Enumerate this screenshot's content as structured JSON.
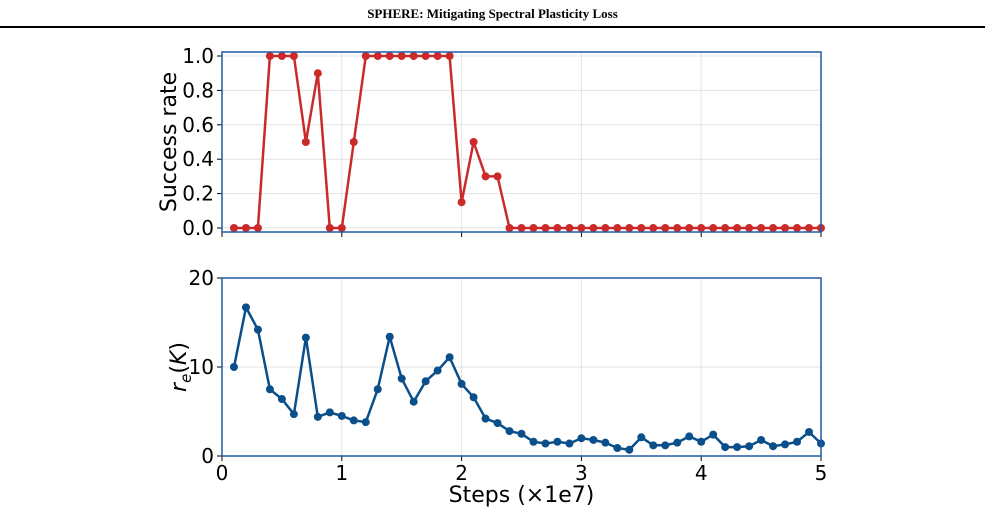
{
  "header": {
    "running_title": "SPHERE: Mitigating Spectral Plasticity Loss"
  },
  "colors": {
    "success_series": "#cb2a2a",
    "rank_series": "#0b4f8a",
    "axes_frame": "#1f5aa6",
    "grid": "#e3e3e3",
    "text": "#000000"
  },
  "chart_data": [
    {
      "type": "line",
      "title": "",
      "xlabel": "",
      "ylabel": "Success rate",
      "xlim": [
        0,
        5
      ],
      "ylim": [
        0,
        1.0
      ],
      "xticks": [
        0,
        1,
        2,
        3,
        4,
        5
      ],
      "xtick_labels_shown": false,
      "yticks": [
        0.0,
        0.2,
        0.4,
        0.6,
        0.8,
        1.0
      ],
      "ytick_labels": [
        "0.0",
        "0.2",
        "0.4",
        "0.6",
        "0.8",
        "1.0"
      ],
      "grid": true,
      "series": [
        {
          "color": "#cb2a2a",
          "x": [
            0.1,
            0.2,
            0.3,
            0.4,
            0.5,
            0.6,
            0.7,
            0.8,
            0.9,
            1.0,
            1.1,
            1.2,
            1.3,
            1.4,
            1.5,
            1.6,
            1.7,
            1.8,
            1.9,
            2.0,
            2.1,
            2.2,
            2.3,
            2.4,
            2.5,
            2.6,
            2.7,
            2.8,
            2.9,
            3.0,
            3.1,
            3.2,
            3.3,
            3.4,
            3.5,
            3.6,
            3.7,
            3.8,
            3.9,
            4.0,
            4.1,
            4.2,
            4.3,
            4.4,
            4.5,
            4.6,
            4.7,
            4.8,
            4.9,
            5.0
          ],
          "y": [
            0,
            0,
            0,
            1,
            1,
            1,
            0.5,
            0.9,
            0,
            0,
            0.5,
            1,
            1,
            1,
            1,
            1,
            1,
            1,
            1,
            0.15,
            0.5,
            0.3,
            0.3,
            0,
            0,
            0,
            0,
            0,
            0,
            0,
            0,
            0,
            0,
            0,
            0,
            0,
            0,
            0,
            0,
            0,
            0,
            0,
            0,
            0,
            0,
            0,
            0,
            0,
            0,
            0
          ]
        }
      ]
    },
    {
      "type": "line",
      "title": "",
      "xlabel": "Steps (×1e7)",
      "ylabel": "r_e(K)",
      "xlim": [
        0,
        5
      ],
      "ylim": [
        0,
        20
      ],
      "xticks": [
        0,
        1,
        2,
        3,
        4,
        5
      ],
      "xtick_labels": [
        "0",
        "1",
        "2",
        "3",
        "4",
        "5"
      ],
      "yticks": [
        0,
        10,
        20
      ],
      "ytick_labels": [
        "0",
        "10",
        "20"
      ],
      "grid": true,
      "series": [
        {
          "color": "#0b4f8a",
          "x": [
            0.1,
            0.2,
            0.3,
            0.4,
            0.5,
            0.6,
            0.7,
            0.8,
            0.9,
            1.0,
            1.1,
            1.2,
            1.3,
            1.4,
            1.5,
            1.6,
            1.7,
            1.8,
            1.9,
            2.0,
            2.1,
            2.2,
            2.3,
            2.4,
            2.5,
            2.6,
            2.7,
            2.8,
            2.9,
            3.0,
            3.1,
            3.2,
            3.3,
            3.4,
            3.5,
            3.6,
            3.7,
            3.8,
            3.9,
            4.0,
            4.1,
            4.2,
            4.3,
            4.4,
            4.5,
            4.6,
            4.7,
            4.8,
            4.9,
            5.0
          ],
          "y": [
            10.0,
            16.7,
            14.2,
            7.5,
            6.4,
            4.7,
            13.3,
            4.4,
            4.9,
            4.5,
            4.0,
            3.8,
            7.5,
            13.4,
            8.7,
            6.1,
            8.4,
            9.6,
            11.1,
            8.1,
            6.6,
            4.2,
            3.7,
            2.8,
            2.5,
            1.6,
            1.4,
            1.6,
            1.4,
            2.0,
            1.8,
            1.5,
            0.9,
            0.7,
            2.1,
            1.2,
            1.2,
            1.5,
            2.2,
            1.6,
            2.4,
            1.0,
            1.0,
            1.1,
            1.8,
            1.1,
            1.3,
            1.6,
            2.7,
            1.4
          ]
        }
      ]
    }
  ]
}
